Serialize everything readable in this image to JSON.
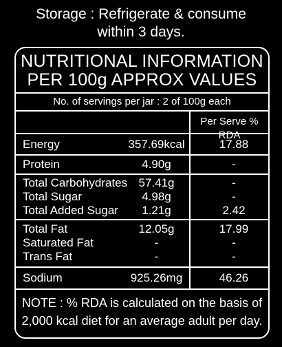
{
  "storage": {
    "line1": "Storage : Refrigerate & consume",
    "line2": "within 3 days."
  },
  "panel": {
    "title_line1": "NUTRITIONAL INFORMATION",
    "title_line2": "PER 100g APPROX VALUES",
    "servings": "No. of servings per jar : 2 of 100g each",
    "rda_header": "Per Serve % RDA"
  },
  "rows": [
    {
      "label": "Energy",
      "value": "357.69kcal",
      "rda": "17.88"
    },
    {
      "label": "Protein",
      "value": "4.90g",
      "rda": "-"
    },
    {
      "label": "Total Carbohydrates",
      "value": "57.41g",
      "rda": "-"
    },
    {
      "label": "Total Sugar",
      "value": "4.98g",
      "rda": "-"
    },
    {
      "label": "Total Added Sugar",
      "value": "1.21g",
      "rda": "2.42"
    },
    {
      "label": "Total Fat",
      "value": "12.05g",
      "rda": "17.99"
    },
    {
      "label": "Saturated Fat",
      "value": "-",
      "rda": "-"
    },
    {
      "label": "Trans Fat",
      "value": "-",
      "rda": "-"
    },
    {
      "label": "Sodium",
      "value": "925.26mg",
      "rda": "46.26"
    }
  ],
  "note": {
    "line1": "NOTE : % RDA is calculated on the basis of",
    "line2": "2,000 kcal diet for an average adult per day."
  }
}
